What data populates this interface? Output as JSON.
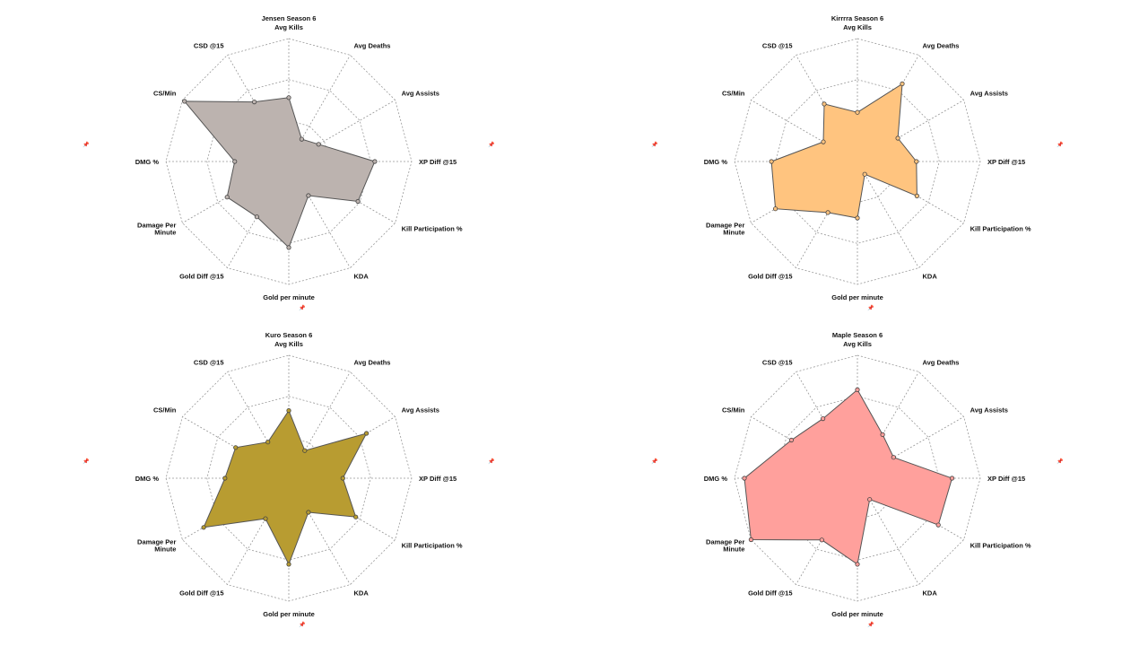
{
  "chart_data": [
    {
      "type": "radar",
      "title": "Jensen Season 6",
      "color": "#bcb3af",
      "axes": [
        "Avg Kills",
        "Avg Deaths",
        "Avg Assists",
        "XP Diff @15",
        "Kill Participation %",
        "KDA",
        "Gold per minute",
        "Gold Diff @15",
        "Damage Per Minute",
        "DMG %",
        "CS/Min",
        "CSD @15"
      ],
      "values": [
        0.52,
        0.21,
        0.28,
        0.7,
        0.65,
        0.32,
        0.7,
        0.52,
        0.58,
        0.44,
        0.98,
        0.56
      ],
      "rmax": 1,
      "grid": true
    },
    {
      "type": "radar",
      "title": "Kirrrra Season 6",
      "color": "#ffc47f",
      "axes": [
        "Avg Kills",
        "Avg Deaths",
        "Avg Assists",
        "XP Diff @15",
        "Kill Participation %",
        "KDA",
        "Gold per minute",
        "Gold Diff @15",
        "Damage Per Minute",
        "DMG %",
        "CS/Min",
        "CSD @15"
      ],
      "values": [
        0.4,
        0.73,
        0.38,
        0.48,
        0.56,
        0.12,
        0.46,
        0.48,
        0.77,
        0.7,
        0.32,
        0.54
      ],
      "rmax": 1,
      "grid": true
    },
    {
      "type": "radar",
      "title": "Kuro Season 6",
      "color": "#b89c31",
      "axes": [
        "Avg Kills",
        "Avg Deaths",
        "Avg Assists",
        "XP Diff @15",
        "Kill Participation %",
        "KDA",
        "Gold per minute",
        "Gold Diff @15",
        "Damage Per Minute",
        "DMG %",
        "CS/Min",
        "CSD @15"
      ],
      "values": [
        0.55,
        0.26,
        0.73,
        0.44,
        0.63,
        0.32,
        0.7,
        0.38,
        0.8,
        0.52,
        0.5,
        0.34
      ],
      "rmax": 1,
      "grid": true
    },
    {
      "type": "radar",
      "title": "Maple Season 6",
      "color": "#ffa09c",
      "axes": [
        "Avg Kills",
        "Avg Deaths",
        "Avg Assists",
        "XP Diff @15",
        "Kill Participation %",
        "KDA",
        "Gold per minute",
        "Gold Diff @15",
        "Damage Per Minute",
        "DMG %",
        "CS/Min",
        "CSD @15"
      ],
      "values": [
        0.72,
        0.41,
        0.34,
        0.77,
        0.76,
        0.2,
        0.7,
        0.58,
        1.0,
        0.92,
        0.62,
        0.56
      ],
      "rmax": 1,
      "grid": true
    }
  ]
}
